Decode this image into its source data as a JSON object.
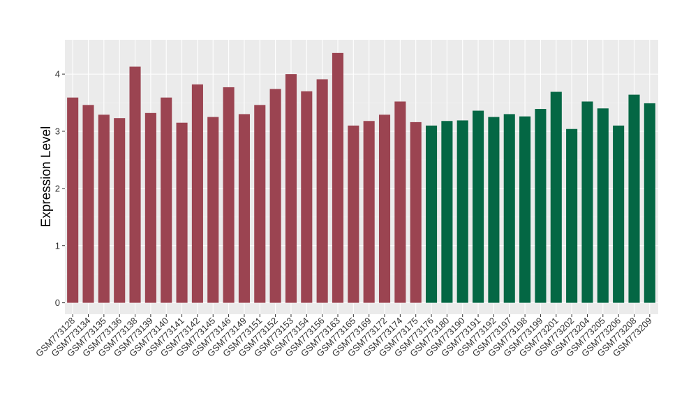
{
  "chart_data": {
    "type": "bar",
    "title": "",
    "xlabel": "",
    "ylabel": "Expression Level",
    "ylim": [
      -0.2,
      4.6
    ],
    "yticks": [
      0,
      1,
      2,
      3,
      4
    ],
    "grid": true,
    "legend": "none",
    "panel_background": "#EBEBEB",
    "colors": {
      "group1": "#9B4451",
      "group2": "#046744"
    },
    "categories": [
      "GSM773128",
      "GSM773134",
      "GSM773135",
      "GSM773136",
      "GSM773138",
      "GSM773139",
      "GSM773140",
      "GSM773141",
      "GSM773142",
      "GSM773145",
      "GSM773146",
      "GSM773149",
      "GSM773151",
      "GSM773152",
      "GSM773153",
      "GSM773154",
      "GSM773156",
      "GSM773163",
      "GSM773165",
      "GSM773169",
      "GSM773172",
      "GSM773174",
      "GSM773175",
      "GSM773176",
      "GSM773180",
      "GSM773190",
      "GSM773191",
      "GSM773192",
      "GSM773197",
      "GSM773198",
      "GSM773199",
      "GSM773201",
      "GSM773202",
      "GSM773204",
      "GSM773205",
      "GSM773206",
      "GSM773208",
      "GSM773209"
    ],
    "values": [
      3.59,
      3.46,
      3.29,
      3.23,
      4.13,
      3.32,
      3.59,
      3.15,
      3.82,
      3.25,
      3.77,
      3.3,
      3.46,
      3.74,
      4.0,
      3.7,
      3.91,
      4.37,
      3.1,
      3.18,
      3.29,
      3.52,
      3.16,
      3.1,
      3.18,
      3.19,
      3.36,
      3.25,
      3.3,
      3.26,
      3.39,
      3.69,
      3.04,
      3.52,
      3.4,
      3.1,
      3.64,
      3.49
    ],
    "groups": [
      "group1",
      "group1",
      "group1",
      "group1",
      "group1",
      "group1",
      "group1",
      "group1",
      "group1",
      "group1",
      "group1",
      "group1",
      "group1",
      "group1",
      "group1",
      "group1",
      "group1",
      "group1",
      "group1",
      "group1",
      "group1",
      "group1",
      "group1",
      "group2",
      "group2",
      "group2",
      "group2",
      "group2",
      "group2",
      "group2",
      "group2",
      "group2",
      "group2",
      "group2",
      "group2",
      "group2",
      "group2",
      "group2"
    ]
  }
}
